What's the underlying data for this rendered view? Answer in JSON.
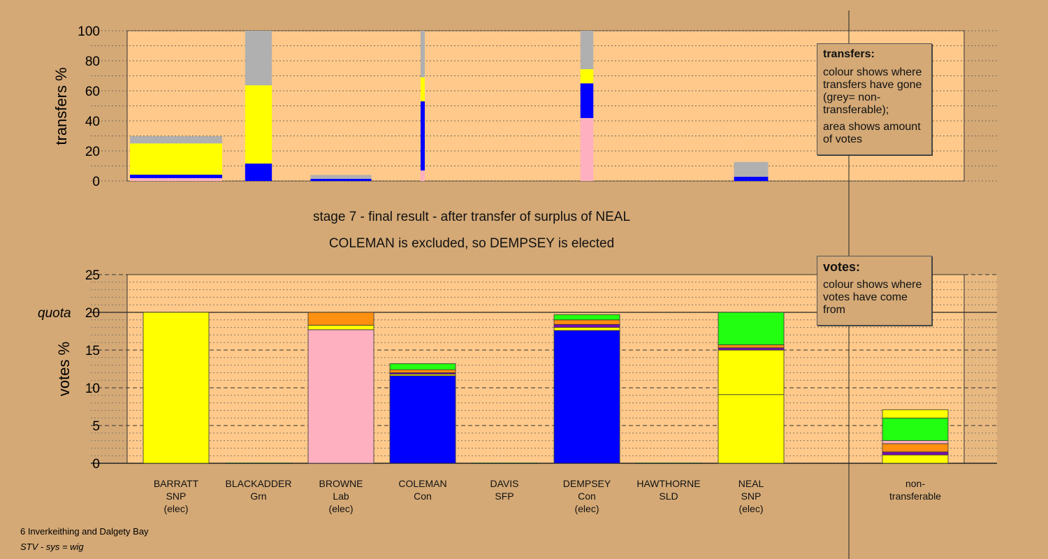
{
  "titles": {
    "stage": "stage 7 - final result - after transfer of surplus of NEAL",
    "outcome": "COLEMAN is excluded, so DEMPSEY is elected"
  },
  "footer": {
    "ward": "6 Inverkeithing and Dalgety Bay",
    "system": "STV - sys = wig"
  },
  "legends": {
    "transfers": {
      "title": "transfers:",
      "line1": "colour shows where transfers have gone (grey= non-transferable);",
      "line2": "area shows amount of votes"
    },
    "votes": {
      "title": "votes:",
      "line1": "colour shows where votes have come from"
    }
  },
  "colors": {
    "background": "#d4a976",
    "plot": "#fec98a",
    "yellow": "#ffff00",
    "blue": "#0000ff",
    "pink": "#ffb0c0",
    "grey": "#b0b0b0",
    "orange": "#ff9010",
    "green": "#22ff10",
    "purple": "#7a10b0"
  },
  "chart_data": [
    {
      "type": "bar",
      "title": "transfers",
      "ylabel": "transfers %",
      "ylim": [
        0,
        100
      ],
      "yticks": [
        "0",
        "20",
        "40",
        "60",
        "80",
        "100"
      ],
      "stacked": true,
      "bars": [
        {
          "candidate": "BARRATT",
          "relative_votes": 1.0,
          "segments": [
            [
              "pink",
              1.9
            ],
            [
              "blue",
              4.2
            ],
            [
              "yellow",
              25
            ],
            [
              "grey",
              29.8
            ]
          ]
        },
        {
          "candidate": "BLACKADDER",
          "relative_votes": 0.29,
          "segments": [
            [
              "blue",
              11.6
            ],
            [
              "yellow",
              63.7
            ],
            [
              "grey",
              100
            ]
          ]
        },
        {
          "candidate": "BROWNE",
          "relative_votes": 0.66,
          "segments": [
            [
              "blue",
              1.4
            ],
            [
              "grey",
              4
            ]
          ]
        },
        {
          "candidate": "COLEMAN",
          "relative_votes": 0.045,
          "segments": [
            [
              "pink",
              7
            ],
            [
              "blue",
              53
            ],
            [
              "yellow",
              69
            ],
            [
              "grey",
              100
            ]
          ]
        },
        {
          "candidate": "DEMPSEY",
          "relative_votes": 0.14,
          "segments": [
            [
              "pink",
              41.9
            ],
            [
              "blue",
              65
            ],
            [
              "yellow",
              74.4
            ],
            [
              "grey",
              100
            ]
          ]
        },
        {
          "candidate": "NEAL",
          "relative_votes": 0.37,
          "segments": [
            [
              "blue",
              2.8
            ],
            [
              "grey",
              12.6
            ]
          ]
        }
      ]
    },
    {
      "type": "bar",
      "title": "votes",
      "ylabel": "votes %",
      "ylim": [
        0,
        25
      ],
      "yticks": [
        "0",
        "5",
        "10",
        "15",
        "20",
        "25"
      ],
      "quota": 20,
      "quota_label": "quota",
      "stacked": true,
      "categories": [
        {
          "name": "BARRATT",
          "party": "SNP",
          "status": "(elec)"
        },
        {
          "name": "BLACKADDER",
          "party": "Grn",
          "status": ""
        },
        {
          "name": "BROWNE",
          "party": "Lab",
          "status": "(elec)"
        },
        {
          "name": "COLEMAN",
          "party": "Con",
          "status": ""
        },
        {
          "name": "DAVIS",
          "party": "SFP",
          "status": ""
        },
        {
          "name": "DEMPSEY",
          "party": "Con",
          "status": "(elec)"
        },
        {
          "name": "HAWTHORNE",
          "party": "SLD",
          "status": ""
        },
        {
          "name": "NEAL",
          "party": "SNP",
          "status": "(elec)"
        },
        {
          "name": "non-",
          "party": "transferable",
          "status": ""
        }
      ],
      "bars": [
        [
          [
            "yellow",
            20
          ]
        ],
        [
          [
            "green",
            0.05
          ]
        ],
        [
          [
            "pink",
            17.7
          ],
          [
            "yellow",
            18.3
          ],
          [
            "orange",
            20
          ]
        ],
        [
          [
            "blue",
            11.6
          ],
          [
            "yellow",
            11.8
          ],
          [
            "purple",
            12.0
          ],
          [
            "orange",
            12.4
          ],
          [
            "green",
            13.2
          ]
        ],
        [
          [
            "green",
            0.05
          ]
        ],
        [
          [
            "blue",
            17.6
          ],
          [
            "yellow",
            18.0
          ],
          [
            "purple",
            18.4
          ],
          [
            "orange",
            19.0
          ],
          [
            "green",
            19.7
          ]
        ],
        [
          [
            "green",
            0.05
          ]
        ],
        [
          [
            "yellow",
            9.1
          ],
          [
            "yellow",
            15.0
          ],
          [
            "purple",
            15.3
          ],
          [
            "orange",
            15.7
          ],
          [
            "green",
            20
          ]
        ],
        [
          [
            "yellow",
            1.1
          ],
          [
            "purple",
            1.5
          ],
          [
            "orange",
            2.6
          ],
          [
            "pink",
            3.0
          ],
          [
            "green",
            6.0
          ],
          [
            "yellow",
            7.1
          ]
        ]
      ]
    }
  ]
}
